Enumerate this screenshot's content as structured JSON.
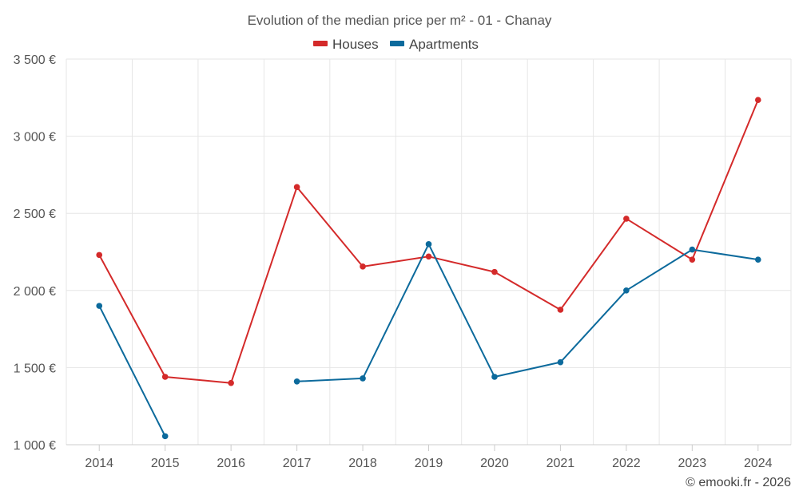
{
  "chart_data": {
    "type": "line",
    "title": "Evolution of the median price per m² - 01 - Chanay",
    "categories": [
      "2014",
      "2015",
      "2016",
      "2017",
      "2018",
      "2019",
      "2020",
      "2021",
      "2022",
      "2023",
      "2024"
    ],
    "y_ticks": [
      1000,
      1500,
      2000,
      2500,
      3000,
      3500
    ],
    "y_tick_labels": [
      "1 000 €",
      "1 500 €",
      "2 000 €",
      "2 500 €",
      "3 000 €",
      "3 500 €"
    ],
    "ylim": [
      1000,
      3500
    ],
    "legend_position": "top-center",
    "series": [
      {
        "name": "Houses",
        "color": "#d42a2a",
        "values": [
          2230,
          1440,
          1400,
          2670,
          2155,
          2220,
          2120,
          1875,
          2465,
          2200,
          3235
        ]
      },
      {
        "name": "Apartments",
        "color": "#0c6a9c",
        "values": [
          1900,
          1055,
          null,
          1410,
          1430,
          2300,
          1440,
          1535,
          2000,
          2265,
          2200
        ]
      }
    ],
    "credit": "© emooki.fr - 2026"
  }
}
